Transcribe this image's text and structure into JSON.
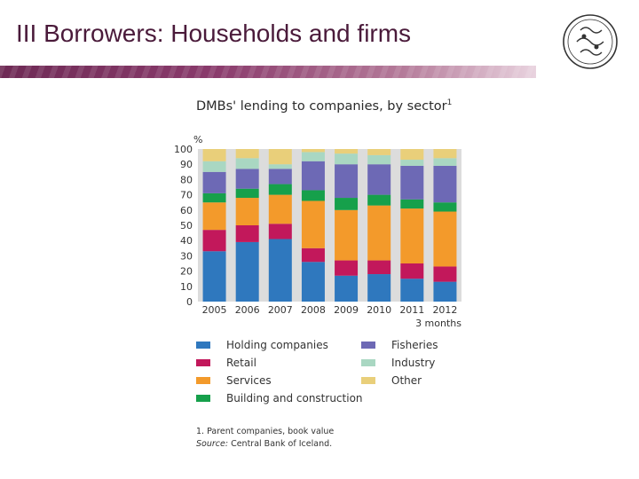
{
  "slide": {
    "title": "III Borrowers: Households and firms"
  },
  "chart_data": {
    "type": "bar",
    "stacked": true,
    "title": "DMBs' lending to companies, by sector",
    "title_footnote_marker": "1",
    "ylabel": "%",
    "ylim": [
      0,
      100
    ],
    "yticks": [
      "0",
      "10",
      "20",
      "30",
      "40",
      "50",
      "60",
      "70",
      "80",
      "90",
      "100"
    ],
    "categories": [
      "2005",
      "2006",
      "2007",
      "2008",
      "2009",
      "2010",
      "2011",
      "2012"
    ],
    "x_note": "3 months",
    "grid": false,
    "legend_position": "bottom",
    "series": [
      {
        "name": "Holding companies",
        "color": "#2f78be",
        "values": [
          33,
          39,
          41,
          26,
          17,
          18,
          15,
          13
        ]
      },
      {
        "name": "Retail",
        "color": "#c2185b",
        "values": [
          14,
          11,
          10,
          9,
          10,
          9,
          10,
          10
        ]
      },
      {
        "name": "Services",
        "color": "#f39a2b",
        "values": [
          18,
          18,
          19,
          31,
          33,
          36,
          36,
          36
        ]
      },
      {
        "name": "Building and construction",
        "color": "#16a04b",
        "values": [
          6,
          6,
          7,
          7,
          8,
          7,
          6,
          6
        ]
      },
      {
        "name": "Fisheries",
        "color": "#6d69b5",
        "values": [
          14,
          13,
          10,
          19,
          22,
          20,
          22,
          24
        ]
      },
      {
        "name": "Industry",
        "color": "#a9d7c2",
        "values": [
          7,
          7,
          3,
          6,
          7,
          6,
          4,
          5
        ]
      },
      {
        "name": "Other",
        "color": "#e9cf7a",
        "values": [
          8,
          6,
          10,
          2,
          3,
          4,
          7,
          6
        ]
      }
    ]
  },
  "legend": {
    "items": [
      "Holding companies",
      "Fisheries",
      "Retail",
      "Industry",
      "Services",
      "Other",
      "Building and construction"
    ]
  },
  "footnotes": {
    "note1": "1. Parent companies, book value",
    "source_label": "Source:",
    "source_text": " Central Bank of Iceland."
  }
}
